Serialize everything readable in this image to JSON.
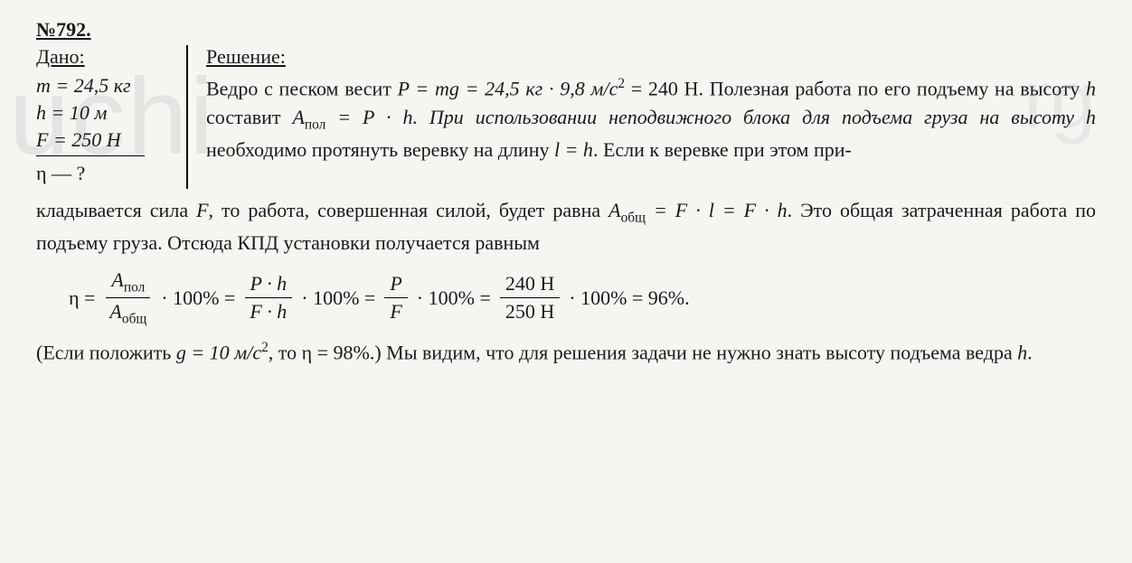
{
  "problem": {
    "number": "№792.",
    "given_title": "Дано:",
    "given_lines": {
      "mass": "m = 24,5 кг",
      "height": "h = 10 м",
      "force": "F = 250 Н",
      "find": "η — ?"
    },
    "solution_title": "Решение:",
    "text": {
      "part1_a": "Ведро с песком весит ",
      "part1_b": "P = mg = 24,5 кг · 9,8 м/с",
      "part1_sup": "2",
      "part1_c": " = 240 Н. Полезная работа по его подъему на высоту ",
      "part1_h": "h",
      "part1_d": " составит ",
      "part1_apol": "A",
      "part1_apol_sub": "пол",
      "part1_e": " = P · h. При использовании неподвижного блока для подъема груза на высоту ",
      "part1_h2": "h",
      "part1_f": " необходимо протянуть веревку на длину ",
      "part1_lh": "l = h",
      "part1_g": ". Если к веревке при этом при-",
      "part2_a": "кладывается сила ",
      "part2_F": "F",
      "part2_b": ", то работа, совершенная силой, будет равна ",
      "part2_aobsh": "A",
      "part2_aobsh_sub": "общ",
      "part2_c": " = F · l = F · h",
      "part2_d": ". Это общая затраченная работа по подъему груза. Отсюда КПД установки получается равным",
      "final_a": "(Если положить ",
      "final_g": "g = 10 м/с",
      "final_sup": "2",
      "final_b": ", то η = 98%.) Мы видим, что для решения задачи не нужно знать высоту подъема ведра ",
      "final_h": "h",
      "final_c": "."
    },
    "formula": {
      "eta": "η =",
      "frac1_top_A": "A",
      "frac1_top_sub": "пол",
      "frac1_bot_A": "A",
      "frac1_bot_sub": "общ",
      "mul100a": "· 100% =",
      "frac2_top": "P · h",
      "frac2_bot": "F · h",
      "mul100b": "· 100% =",
      "frac3_top": "P",
      "frac3_bot": "F",
      "mul100c": "· 100% =",
      "frac4_top": "240 Н",
      "frac4_bot": "250 Н",
      "mul100d": "· 100% = 96%."
    }
  },
  "style": {
    "background_color": "#f5f5f2",
    "text_color": "#1a1a1a",
    "font_family": "Times New Roman",
    "font_size_pt": 16
  }
}
